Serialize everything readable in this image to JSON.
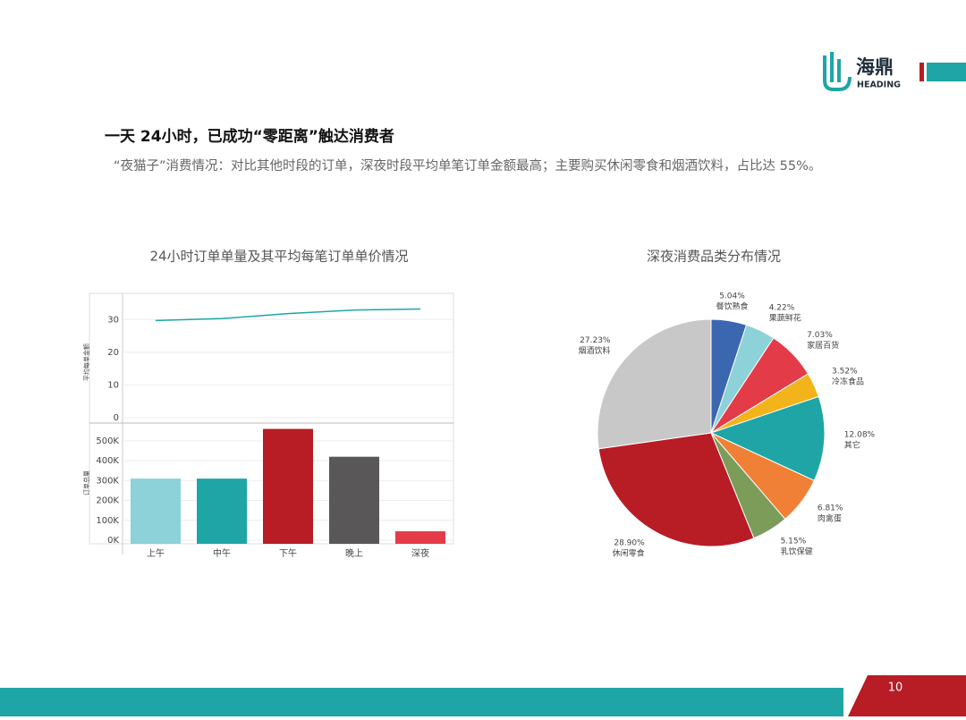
{
  "header": {
    "title": "一天 24小时，已成功“零距离”触达消费者",
    "subtitle": "“夜猫子”消费情况：对比其他时段的订单，深夜时段平均单笔订单金额最高；主要购买休闲零食和烟酒饮料，占比达 55%。"
  },
  "logo": {
    "name": "海鼎",
    "brand": "HEADING"
  },
  "page_number": "10",
  "chart_data": [
    {
      "type": "combo",
      "title": "24小时订单单量及其平均每笔订单单价情况",
      "categories": [
        "上午",
        "中午",
        "下午",
        "晚上",
        "深夜"
      ],
      "ylabel": "订单总量",
      "y2label": "平均每单金额",
      "ylim": [
        0,
        585000
      ],
      "yticks": [
        {
          "value": 0,
          "label": "0K"
        },
        {
          "value": 100000,
          "label": "100K"
        },
        {
          "value": 200000,
          "label": "200K"
        },
        {
          "value": 300000,
          "label": "300K"
        },
        {
          "value": 400000,
          "label": "400K"
        },
        {
          "value": 500000,
          "label": "500K"
        }
      ],
      "y2lim": [
        0,
        38
      ],
      "y2ticks": [
        0,
        10,
        20,
        30
      ],
      "grid": true,
      "series": [
        {
          "type": "bar",
          "colors": [
            "#8dd1d9",
            "#1fa5a6",
            "#b81c25",
            "#595757",
            "#e43b49"
          ],
          "values": [
            310000,
            310000,
            560000,
            420000,
            45000
          ]
        },
        {
          "type": "line",
          "axis": "y2",
          "color": "#1fa5a6",
          "values": [
            29.7,
            30.3,
            31.8,
            32.9,
            33.2
          ]
        }
      ]
    },
    {
      "type": "pie",
      "title": "深夜消费品类分布情况",
      "categories": [
        "餐饮熟食",
        "果蔬鲜花",
        "家居百货",
        "冷冻食品",
        "其它",
        "肉禽蛋",
        "乳饮保健",
        "休闲零食",
        "烟酒饮料"
      ],
      "values": [
        5.04,
        4.22,
        7.03,
        3.52,
        12.08,
        6.81,
        5.15,
        28.9,
        27.23
      ],
      "value_labels": [
        "5.04%",
        "4.22%",
        "7.03%",
        "3.52%",
        "12.08%",
        "6.81%",
        "5.15%",
        "28.90%",
        "27.23%"
      ],
      "colors": [
        "#3b67b1",
        "#8dd1d9",
        "#e43b49",
        "#f2b31b",
        "#1fa5a6",
        "#ef8036",
        "#7c9c5a",
        "#b81c25",
        "#c8c8c8"
      ]
    }
  ]
}
